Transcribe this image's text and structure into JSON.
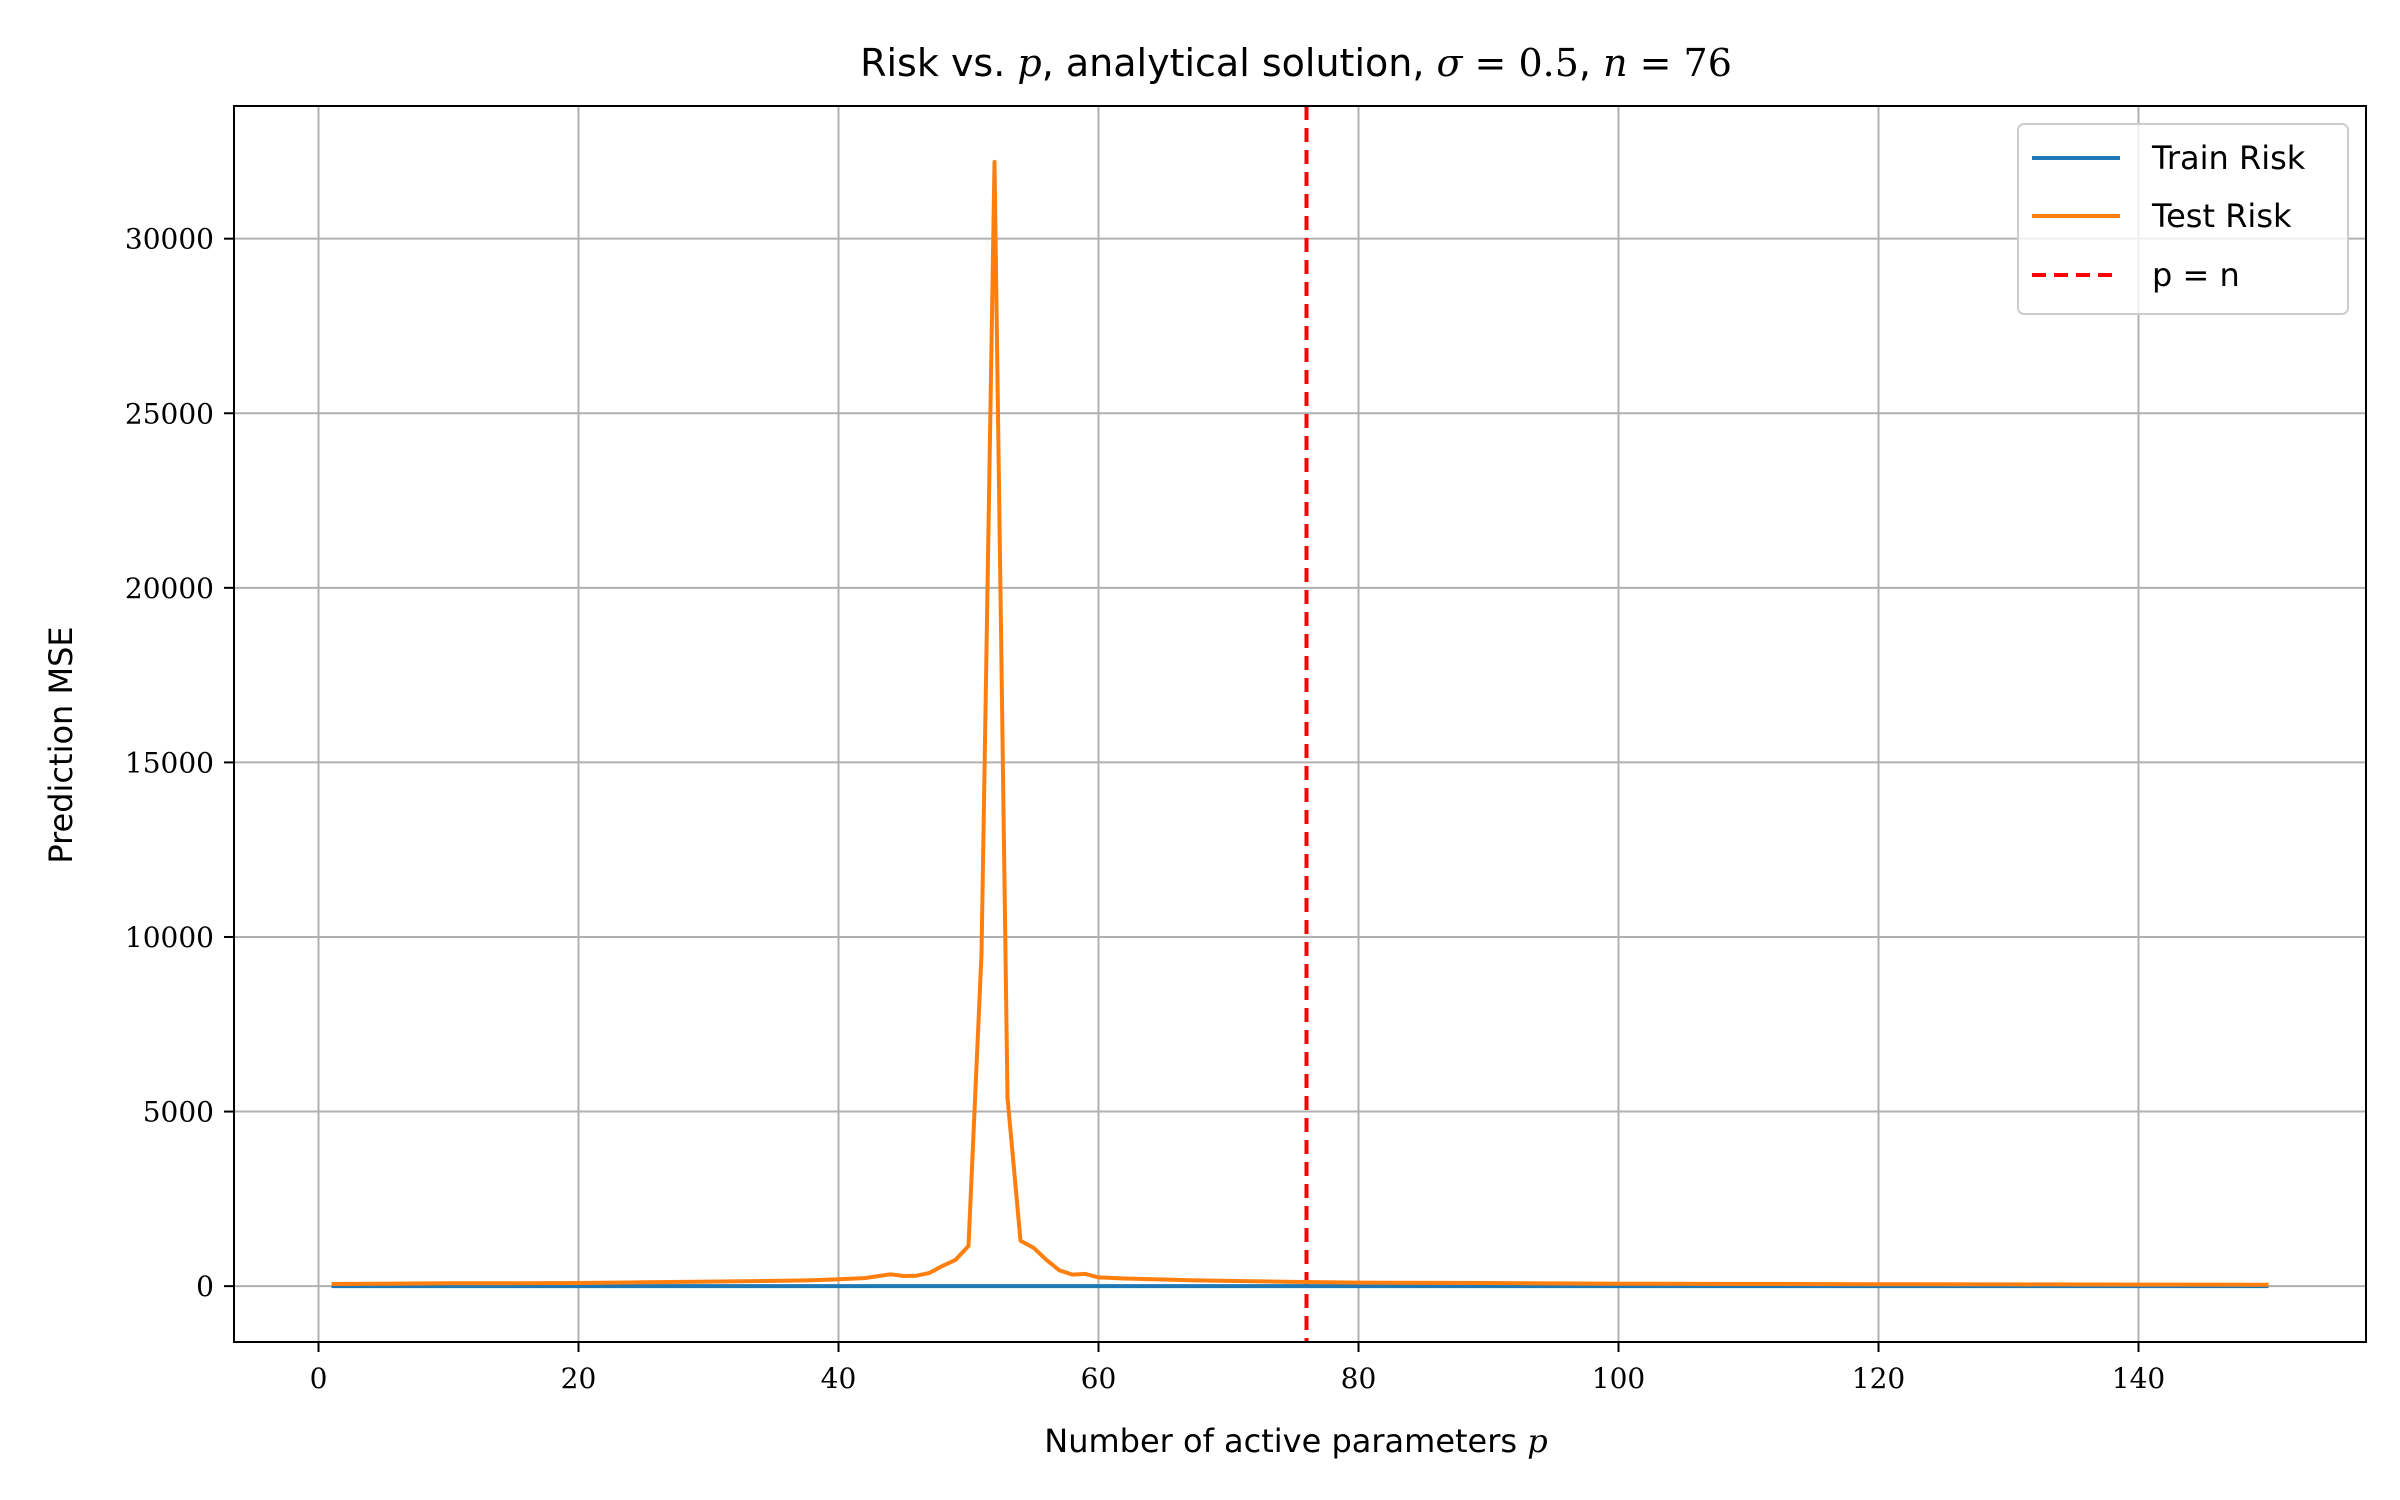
{
  "chart_data": {
    "type": "line",
    "title": {
      "prefix": "Risk vs. ",
      "p_symbol": "p",
      "middle": ", analytical solution, ",
      "sigma_symbol": "σ",
      "sigma_eq": " = ",
      "sigma_value": "0.5",
      "comma": ", ",
      "n_symbol": "n",
      "n_eq": " = ",
      "n_value": "76"
    },
    "xlabel": {
      "text": "Number of active parameters ",
      "symbol": "p"
    },
    "ylabel": "Prediction MSE",
    "xlim": [
      -6.5,
      157.5
    ],
    "ylim": [
      -1600,
      33800
    ],
    "xticks": [
      0,
      20,
      40,
      60,
      80,
      100,
      120,
      140
    ],
    "yticks": [
      0,
      5000,
      10000,
      15000,
      20000,
      25000,
      30000
    ],
    "grid": true,
    "legend_position": "top-right",
    "series": [
      {
        "name": "Train Risk",
        "color": "#1f77b4",
        "x": [
          1,
          20,
          40,
          50,
          60,
          76,
          100,
          150
        ],
        "y": [
          0,
          0,
          0,
          0,
          0,
          0,
          0,
          0
        ]
      },
      {
        "name": "Test Risk",
        "color": "#ff7f0e",
        "x": [
          1,
          5,
          10,
          15,
          20,
          25,
          30,
          35,
          38,
          40,
          42,
          44,
          45,
          46,
          47,
          48,
          49,
          50,
          51,
          52,
          53,
          54,
          55,
          56,
          57,
          58,
          59,
          60,
          62,
          65,
          67,
          70,
          75,
          80,
          90,
          100,
          110,
          120,
          130,
          140,
          150
        ],
        "y": [
          60,
          70,
          80,
          85,
          90,
          110,
          130,
          150,
          170,
          200,
          230,
          340,
          290,
          300,
          380,
          580,
          750,
          1150,
          9500,
          32200,
          5400,
          1300,
          1100,
          750,
          450,
          330,
          350,
          250,
          220,
          190,
          170,
          150,
          120,
          100,
          90,
          70,
          60,
          55,
          50,
          45,
          40
        ]
      }
    ],
    "reference_line": {
      "name": "p = n",
      "x": 76,
      "color": "#ff0000",
      "style": "dashed"
    }
  }
}
